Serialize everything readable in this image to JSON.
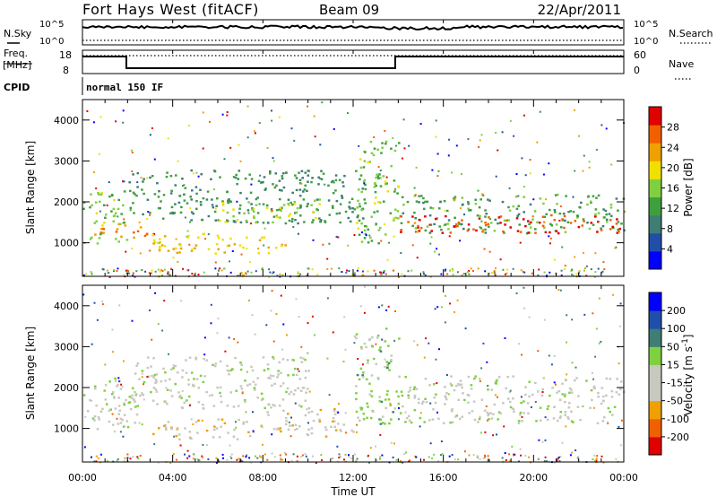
{
  "header": {
    "station": "Fort Hays West (fitACF)",
    "beam": "Beam 09",
    "date": "22/Apr/2011"
  },
  "strip": {
    "nsky_label": "N.Sky",
    "nsearch_label": "N.Search",
    "noise_ticks": [
      "10^5",
      "10^0"
    ],
    "noise_ticks_right": [
      "10^5",
      "10^0"
    ],
    "freq_label": "Freq.",
    "freq_unit": "[MHz]",
    "freq_ticks": [
      "18",
      "8"
    ],
    "nave_ticks": [
      "60",
      "0"
    ],
    "nave_label": "Nave",
    "cpid_label": "CPID",
    "cpid_program": "normal 150 IF"
  },
  "colors": {
    "power": [
      "#0000ff",
      "#1f4fa8",
      "#3e7e74",
      "#3f9f3f",
      "#7fd040",
      "#f0e000",
      "#f0a000",
      "#f06000",
      "#e00000"
    ],
    "velocity": [
      "#e00000",
      "#f06000",
      "#f0a000",
      "#c8c8c0",
      "#c8c8c0",
      "#7fd040",
      "#3e7e74",
      "#1f4fa8",
      "#0000ff"
    ]
  },
  "chart_data": [
    {
      "type": "heatmap",
      "name": "power",
      "ylabel": "Slant Range [km]",
      "yticks": [
        "1000",
        "2000",
        "3000",
        "4000"
      ],
      "ylim": [
        180,
        4500
      ],
      "colorbar_label": "Power [dB]",
      "colorbar_ticks": [
        "4",
        "8",
        "12",
        "16",
        "20",
        "24",
        "28"
      ],
      "zlim": [
        0,
        30
      ],
      "bands": [
        {
          "t0": 0.0,
          "t1": 2.0,
          "r0": 1000,
          "r1": 2300,
          "value": 14
        },
        {
          "t0": 0.5,
          "t1": 3.5,
          "r0": 1150,
          "r1": 1500,
          "value": 24
        },
        {
          "t0": 2.0,
          "t1": 12.5,
          "r0": 1500,
          "r1": 2800,
          "value": 10
        },
        {
          "t0": 3.0,
          "t1": 9.0,
          "r0": 750,
          "r1": 1250,
          "value": 20
        },
        {
          "t0": 6.0,
          "t1": 10.5,
          "r0": 1500,
          "r1": 2100,
          "value": 16
        },
        {
          "t0": 12.0,
          "t1": 14.0,
          "r0": 1000,
          "r1": 3500,
          "value": 14
        },
        {
          "t0": 14.0,
          "t1": 24.0,
          "r0": 1250,
          "r1": 2200,
          "value": 12
        },
        {
          "t0": 14.0,
          "t1": 24.0,
          "r0": 1250,
          "r1": 1700,
          "value": 26
        }
      ]
    },
    {
      "type": "heatmap",
      "name": "velocity",
      "xlabel": "Time UT",
      "xticks": [
        "00:00",
        "04:00",
        "08:00",
        "12:00",
        "16:00",
        "20:00",
        "00:00"
      ],
      "xlim": [
        0,
        24
      ],
      "ylabel": "Slant Range [km]",
      "yticks": [
        "1000",
        "2000",
        "3000",
        "4000"
      ],
      "ylim": [
        180,
        4500
      ],
      "colorbar_label": "Velocity [m s^-1]",
      "colorbar_ticks": [
        "-200",
        "-100",
        "-50",
        "-15",
        "15",
        "50",
        "100",
        "200"
      ],
      "zlim": [
        -250,
        250
      ],
      "bands": [
        {
          "t0": 0.0,
          "t1": 2.5,
          "r0": 1000,
          "r1": 2300,
          "value": 0
        },
        {
          "t0": 2.0,
          "t1": 10.0,
          "r0": 1500,
          "r1": 2800,
          "value": 0
        },
        {
          "t0": 3.0,
          "t1": 8.0,
          "r0": 750,
          "r1": 1250,
          "value": -60
        },
        {
          "t0": 8.0,
          "t1": 12.0,
          "r0": 800,
          "r1": 1500,
          "value": -60
        },
        {
          "t0": 12.0,
          "t1": 14.0,
          "r0": 1100,
          "r1": 3500,
          "value": 40
        },
        {
          "t0": 14.0,
          "t1": 24.0,
          "r0": 1150,
          "r1": 2300,
          "value": 0
        }
      ]
    }
  ]
}
